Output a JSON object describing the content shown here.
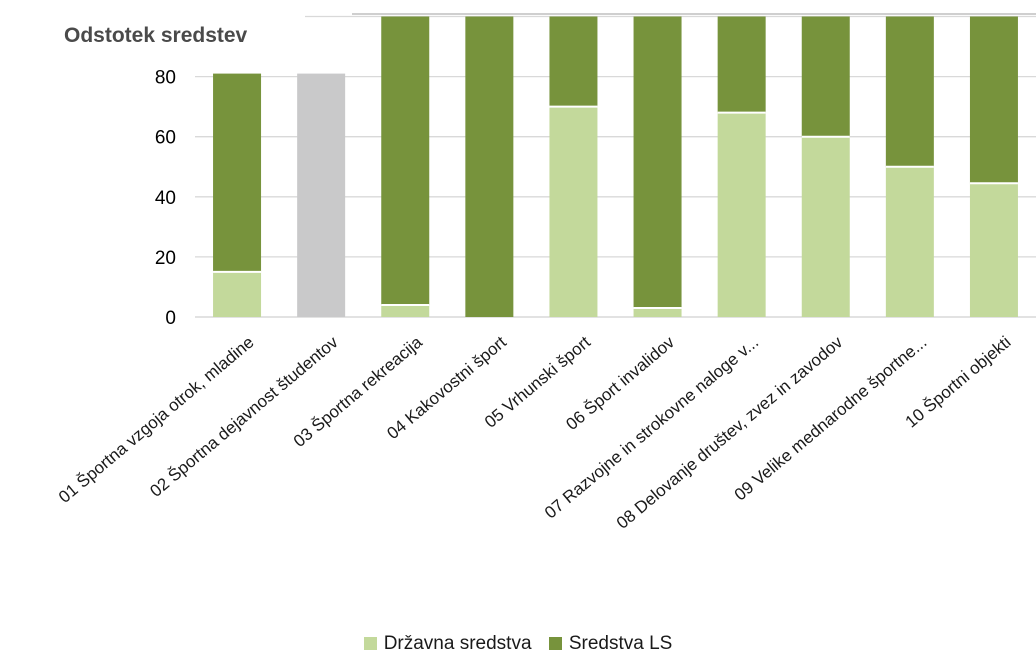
{
  "chart_data": {
    "type": "bar",
    "stacked": true,
    "ylabel": "Odstotek  sredstev",
    "y_ticks": [
      "0",
      "20",
      "40",
      "60",
      "80"
    ],
    "categories": [
      "01 Športna vzgoja otrok, mladine",
      "02 Športna dejavnost študentov",
      "03 Športna rekreacija",
      "04 Kakovostni šport",
      "05 Vrhunski šport",
      "06 Šport invalidov",
      "07 Razvojne in strokovne naloge v...",
      "08 Delovanje društev, zvez in zavodov",
      "09 Velike mednarodne športne...",
      "10 Športni objekti"
    ],
    "series": [
      {
        "name": "Državna sredstva",
        "color": "#c3d99b",
        "values": [
          15,
          0,
          4,
          0,
          70,
          3,
          68,
          60,
          50,
          44.5
        ]
      },
      {
        "name": "Sredstva LS",
        "color": "#77933c",
        "values": [
          66,
          0,
          96,
          100,
          30,
          97,
          32,
          40,
          50,
          55.5
        ]
      }
    ],
    "special_bars": [
      {
        "category_index": 1,
        "value": 81,
        "color": "#c9c9ca"
      }
    ],
    "grid": true,
    "legend_position": "bottom"
  }
}
